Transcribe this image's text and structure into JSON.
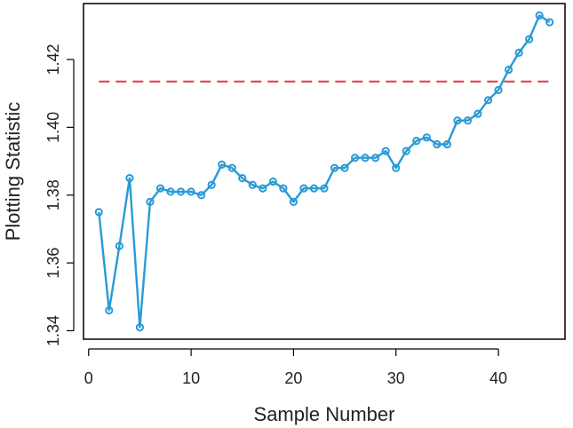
{
  "chart_data": {
    "type": "line",
    "title": "",
    "xlabel": "Sample Number",
    "ylabel": "Plotting Statistic",
    "xlim": [
      -0.5,
      46.5
    ],
    "ylim": [
      1.3375,
      1.4365
    ],
    "xticks": [
      0,
      10,
      20,
      30,
      40
    ],
    "yticks": [
      1.34,
      1.36,
      1.38,
      1.4,
      1.42
    ],
    "ytick_labels": [
      "1.34",
      "1.36",
      "1.38",
      "1.40",
      "1.42"
    ],
    "grid": false,
    "legend": "none",
    "series": [
      {
        "color": "#2a9ad6",
        "marker": "circle",
        "x": [
          1,
          2,
          3,
          4,
          5,
          6,
          7,
          8,
          9,
          10,
          11,
          12,
          13,
          14,
          15,
          16,
          17,
          18,
          19,
          20,
          21,
          22,
          23,
          24,
          25,
          26,
          27,
          28,
          29,
          30,
          31,
          32,
          33,
          34,
          35,
          36,
          37,
          38,
          39,
          40,
          41,
          42,
          43,
          44,
          45
        ],
        "y": [
          1.375,
          1.346,
          1.365,
          1.385,
          1.341,
          1.378,
          1.382,
          1.381,
          1.381,
          1.381,
          1.38,
          1.383,
          1.389,
          1.388,
          1.385,
          1.383,
          1.382,
          1.384,
          1.382,
          1.378,
          1.382,
          1.382,
          1.382,
          1.388,
          1.388,
          1.391,
          1.391,
          1.391,
          1.393,
          1.388,
          1.393,
          1.396,
          1.397,
          1.395,
          1.395,
          1.402,
          1.402,
          1.404,
          1.408,
          1.411,
          1.417,
          1.422,
          1.426,
          1.433,
          1.431
        ]
      }
    ],
    "control_limit": {
      "y": 1.4135,
      "color": "#e8414f",
      "style": "dashed",
      "x_from": 1,
      "x_to": 45
    }
  }
}
